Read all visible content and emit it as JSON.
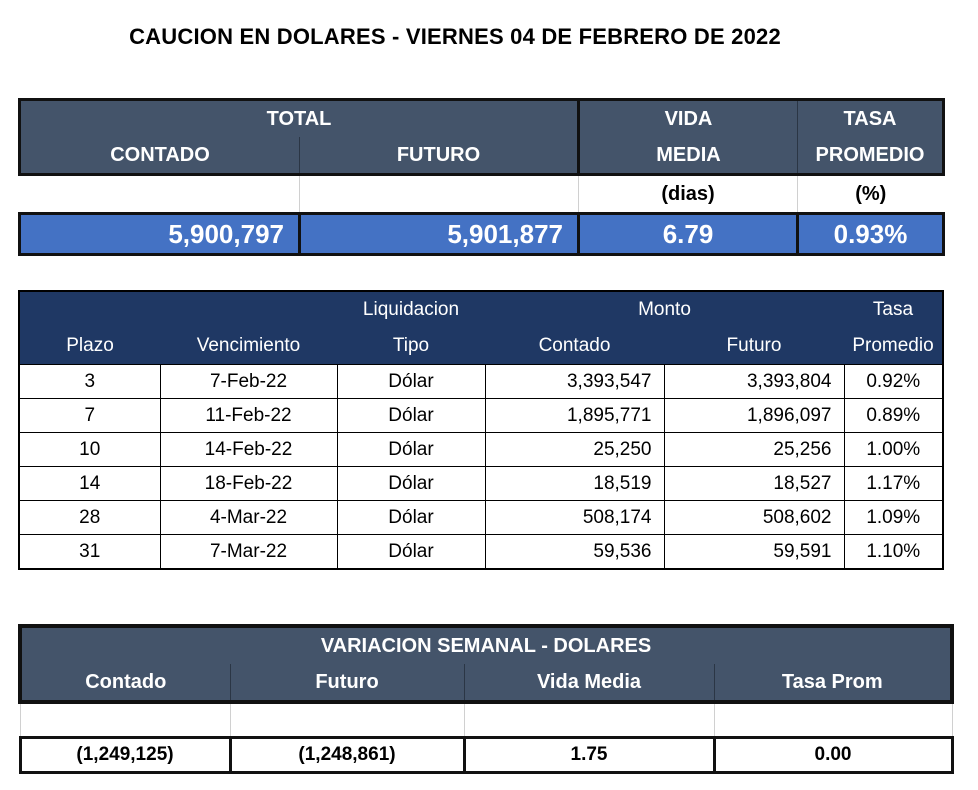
{
  "title": "CAUCION EN DOLARES - VIERNES 04 DE FEBRERO DE 2022",
  "summary": {
    "header_total": "TOTAL",
    "header_contado": "CONTADO",
    "header_futuro": "FUTURO",
    "header_vida_1": "VIDA",
    "header_vida_2": "MEDIA",
    "header_tasa_1": "TASA",
    "header_tasa_2": "PROMEDIO",
    "unit_vida": "(dias)",
    "unit_tasa": "(%)",
    "contado": "5,900,797",
    "futuro": "5,901,877",
    "vida_media": "6.79",
    "tasa_promedio": "0.93%"
  },
  "detail": {
    "header_liquidacion": "Liquidacion",
    "header_monto": "Monto",
    "header_tasa": "Tasa",
    "col_plazo": "Plazo",
    "col_vencimiento": "Vencimiento",
    "col_tipo": "Tipo",
    "col_contado": "Contado",
    "col_futuro": "Futuro",
    "col_promedio": "Promedio",
    "rows": [
      {
        "plazo": "3",
        "vencimiento": "7-Feb-22",
        "tipo": "Dólar",
        "contado": "3,393,547",
        "futuro": "3,393,804",
        "tasa": "0.92%"
      },
      {
        "plazo": "7",
        "vencimiento": "11-Feb-22",
        "tipo": "Dólar",
        "contado": "1,895,771",
        "futuro": "1,896,097",
        "tasa": "0.89%"
      },
      {
        "plazo": "10",
        "vencimiento": "14-Feb-22",
        "tipo": "Dólar",
        "contado": "25,250",
        "futuro": "25,256",
        "tasa": "1.00%"
      },
      {
        "plazo": "14",
        "vencimiento": "18-Feb-22",
        "tipo": "Dólar",
        "contado": "18,519",
        "futuro": "18,527",
        "tasa": "1.17%"
      },
      {
        "plazo": "28",
        "vencimiento": "4-Mar-22",
        "tipo": "Dólar",
        "contado": "508,174",
        "futuro": "508,602",
        "tasa": "1.09%"
      },
      {
        "plazo": "31",
        "vencimiento": "7-Mar-22",
        "tipo": "Dólar",
        "contado": "59,536",
        "futuro": "59,591",
        "tasa": "1.10%"
      }
    ]
  },
  "weekly": {
    "header": "VARIACION SEMANAL - DOLARES",
    "col_contado": "Contado",
    "col_futuro": "Futuro",
    "col_vida": "Vida Media",
    "col_tasa": "Tasa Prom",
    "contado": "(1,249,125)",
    "futuro": "(1,248,861)",
    "vida_media": "1.75",
    "tasa_prom": "0.00"
  },
  "colors": {
    "header_slate": "#44546a",
    "header_navy": "#1f3864",
    "value_blue": "#4472c4"
  }
}
